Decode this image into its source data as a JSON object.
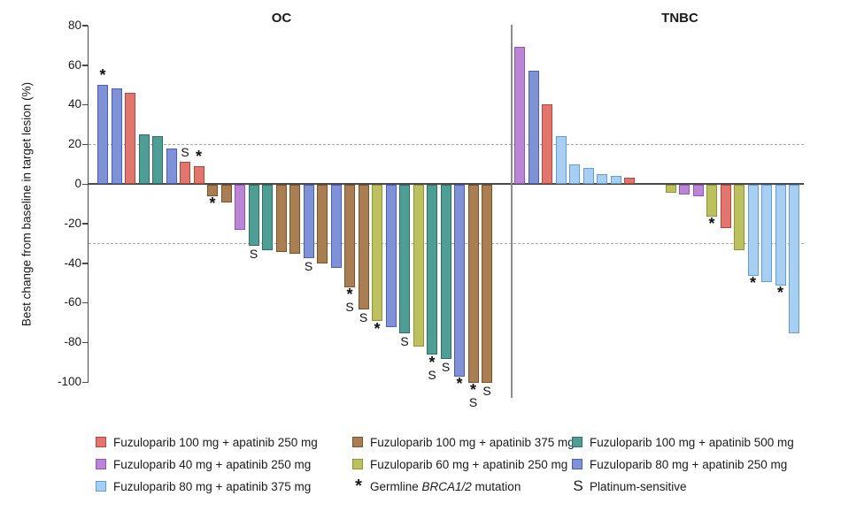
{
  "chart_data": {
    "type": "bar",
    "subtype": "waterfall",
    "ylabel": "Best change from baseline in target lesion (%)",
    "ylim": [
      -100,
      80
    ],
    "yticks": [
      80,
      60,
      40,
      20,
      0,
      -20,
      -40,
      -60,
      -80,
      -100
    ],
    "reference_lines": {
      "upper": 20,
      "lower": -30
    },
    "grid": "off",
    "annotation_meaning": {
      "star": "Germline BRCA1/2 mutation",
      "S": "Platinum-sensitive"
    },
    "colors": {
      "red": {
        "fill": "#E0766D",
        "stroke": "#B8453C"
      },
      "brown": {
        "fill": "#A87E52",
        "stroke": "#7A5226"
      },
      "teal": {
        "fill": "#4F9E95",
        "stroke": "#2E6F66"
      },
      "purple": {
        "fill": "#BB85D6",
        "stroke": "#9851BE"
      },
      "olive": {
        "fill": "#BCC05E",
        "stroke": "#8F9430"
      },
      "blueviolet": {
        "fill": "#8092D6",
        "stroke": "#4C5CBC"
      },
      "lightblue": {
        "fill": "#A8CEF2",
        "stroke": "#5E9FD9"
      }
    },
    "groups": [
      {
        "title": "OC",
        "bars": [
          {
            "value": 50,
            "color": "blueviolet",
            "ann": "*"
          },
          {
            "value": 48,
            "color": "blueviolet",
            "ann": ""
          },
          {
            "value": 46,
            "color": "red",
            "ann": ""
          },
          {
            "value": 25,
            "color": "teal",
            "ann": ""
          },
          {
            "value": 24,
            "color": "teal",
            "ann": ""
          },
          {
            "value": 18,
            "color": "blueviolet",
            "ann": ""
          },
          {
            "value": 11,
            "color": "red",
            "ann": "S"
          },
          {
            "value": 9,
            "color": "red",
            "ann": "*"
          },
          {
            "value": -6,
            "color": "brown",
            "ann": "*"
          },
          {
            "value": -9,
            "color": "brown",
            "ann": ""
          },
          {
            "value": -23,
            "color": "purple",
            "ann": ""
          },
          {
            "value": -31,
            "color": "teal",
            "ann": "S"
          },
          {
            "value": -33,
            "color": "teal",
            "ann": ""
          },
          {
            "value": -34,
            "color": "brown",
            "ann": ""
          },
          {
            "value": -35,
            "color": "brown",
            "ann": ""
          },
          {
            "value": -37,
            "color": "blueviolet",
            "ann": "S"
          },
          {
            "value": -40,
            "color": "brown",
            "ann": ""
          },
          {
            "value": -42,
            "color": "blueviolet",
            "ann": ""
          },
          {
            "value": -52,
            "color": "brown",
            "ann": "*S"
          },
          {
            "value": -63,
            "color": "brown",
            "ann": "S"
          },
          {
            "value": -69,
            "color": "olive",
            "ann": "*"
          },
          {
            "value": -72,
            "color": "blueviolet",
            "ann": ""
          },
          {
            "value": -75,
            "color": "teal",
            "ann": "S"
          },
          {
            "value": -82,
            "color": "olive",
            "ann": ""
          },
          {
            "value": -86,
            "color": "teal",
            "ann": "*S"
          },
          {
            "value": -88,
            "color": "teal",
            "ann": "S"
          },
          {
            "value": -97,
            "color": "blueviolet",
            "ann": "*"
          },
          {
            "value": -100,
            "color": "brown",
            "ann": "*S"
          },
          {
            "value": -100,
            "color": "brown",
            "ann": "S"
          }
        ]
      },
      {
        "title": "TNBC",
        "gap_before_index": 9,
        "gap_slots": 2,
        "bars": [
          {
            "value": 69,
            "color": "purple",
            "ann": ""
          },
          {
            "value": 57,
            "color": "blueviolet",
            "ann": ""
          },
          {
            "value": 40,
            "color": "red",
            "ann": ""
          },
          {
            "value": 24,
            "color": "lightblue",
            "ann": ""
          },
          {
            "value": 10,
            "color": "lightblue",
            "ann": ""
          },
          {
            "value": 8,
            "color": "lightblue",
            "ann": ""
          },
          {
            "value": 5,
            "color": "lightblue",
            "ann": ""
          },
          {
            "value": 4,
            "color": "lightblue",
            "ann": ""
          },
          {
            "value": 3,
            "color": "red",
            "ann": ""
          },
          {
            "value": -4,
            "color": "olive",
            "ann": ""
          },
          {
            "value": -5,
            "color": "purple",
            "ann": ""
          },
          {
            "value": -6,
            "color": "purple",
            "ann": ""
          },
          {
            "value": -16,
            "color": "olive",
            "ann": "*"
          },
          {
            "value": -22,
            "color": "red",
            "ann": ""
          },
          {
            "value": -33,
            "color": "olive",
            "ann": ""
          },
          {
            "value": -46,
            "color": "lightblue",
            "ann": "*"
          },
          {
            "value": -49,
            "color": "lightblue",
            "ann": ""
          },
          {
            "value": -51,
            "color": "lightblue",
            "ann": "*"
          },
          {
            "value": -75,
            "color": "lightblue",
            "ann": ""
          }
        ]
      }
    ],
    "legend": [
      {
        "swatch": "red",
        "label": "Fuzuloparib 100 mg + apatinib 250 mg"
      },
      {
        "swatch": "purple",
        "label": "Fuzuloparib 40 mg + apatinib 250 mg"
      },
      {
        "swatch": "lightblue",
        "label": "Fuzuloparib 80 mg + apatinib 375 mg"
      },
      {
        "swatch": "brown",
        "label": "Fuzuloparib 100 mg + apatinib 375 mg"
      },
      {
        "swatch": "olive",
        "label": "Fuzuloparib 60 mg + apatinib 250 mg"
      },
      {
        "symbol": "*",
        "label_parts": [
          "Germline ",
          "BRCA1/2",
          " mutation"
        ]
      },
      {
        "swatch": "teal",
        "label": "Fuzuloparib 100 mg + apatinib 500 mg"
      },
      {
        "swatch": "blueviolet",
        "label": "Fuzuloparib 80 mg + apatinib 250 mg"
      },
      {
        "symbol": "S",
        "label": "Platinum-sensitive"
      }
    ]
  }
}
